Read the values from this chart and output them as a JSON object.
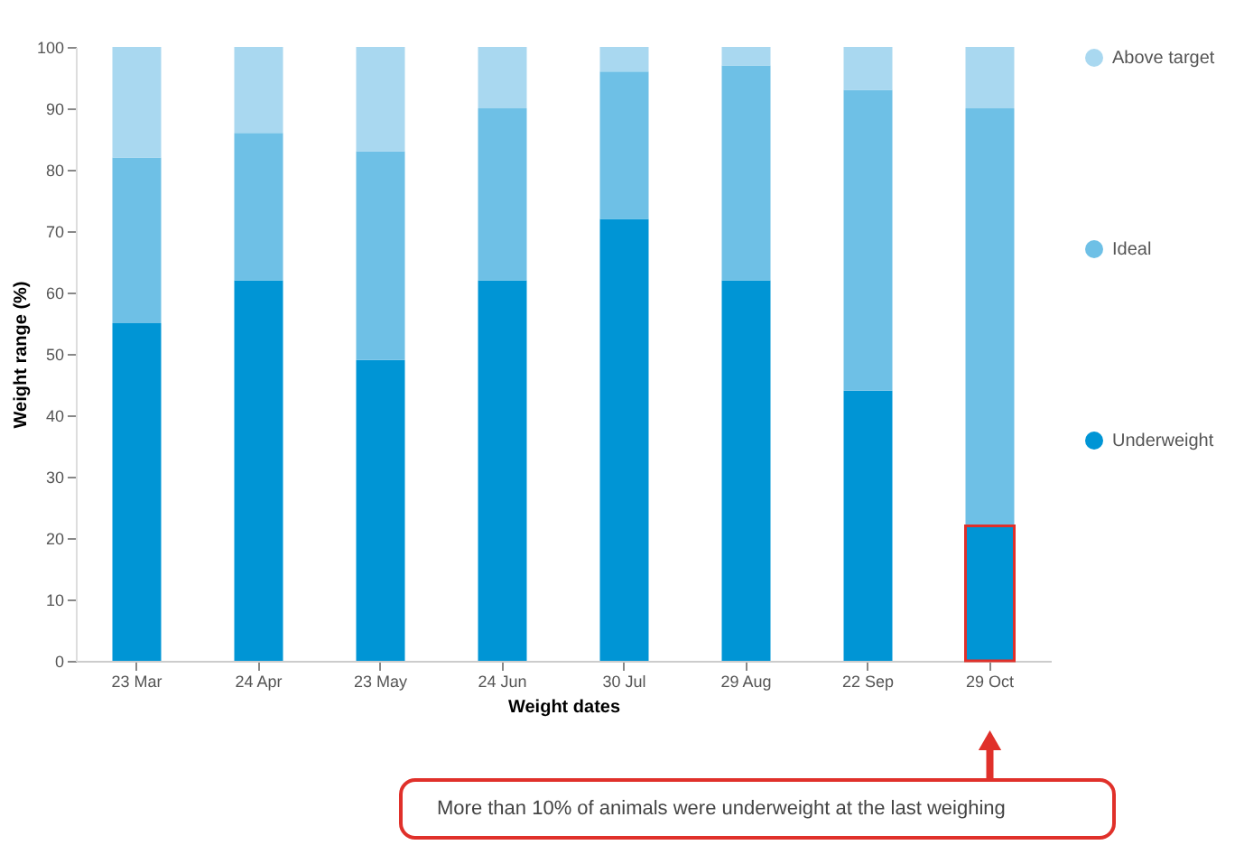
{
  "chart_data": {
    "type": "bar",
    "stacked": true,
    "xlabel": "Weight dates",
    "ylabel": "Weight range (%)",
    "categories": [
      "23 Mar",
      "24 Apr",
      "23 May",
      "24 Jun",
      "30 Jul",
      "29 Aug",
      "22 Sep",
      "29 Oct"
    ],
    "series": [
      {
        "name": "Underweight",
        "color": "#0095d5",
        "values": [
          55,
          62,
          49,
          62,
          72,
          62,
          44,
          22
        ]
      },
      {
        "name": "Ideal",
        "color": "#6ec0e6",
        "values": [
          27,
          24,
          34,
          28,
          24,
          35,
          49,
          68
        ]
      },
      {
        "name": "Above target",
        "color": "#a9d8f0",
        "values": [
          18,
          14,
          17,
          10,
          4,
          3,
          7,
          10
        ]
      }
    ],
    "ylim": [
      0,
      100
    ],
    "yticks": [
      0,
      10,
      20,
      30,
      40,
      50,
      60,
      70,
      80,
      90,
      100
    ],
    "grid": false,
    "legend": "right",
    "annotations": [
      "More than 10% of animals were underweight at the last weighing"
    ]
  }
}
